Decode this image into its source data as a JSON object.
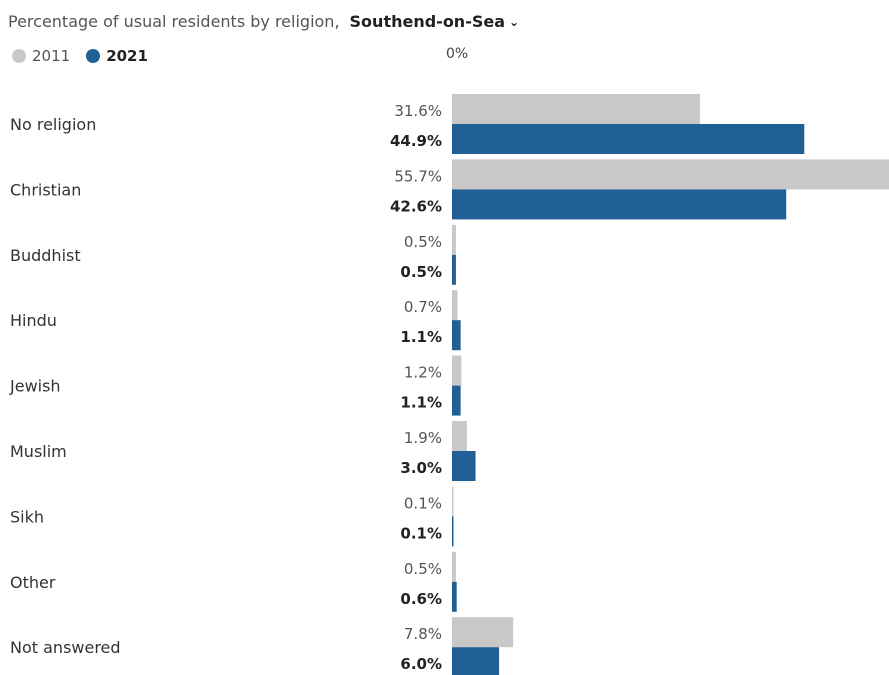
{
  "header": {
    "title": "Percentage of usual residents by religion,",
    "area": "Southend-on-Sea",
    "chevron": "⌄"
  },
  "legend": [
    {
      "name": "2011",
      "color": "#c8c8c8"
    },
    {
      "name": "2021",
      "color": "#206095"
    }
  ],
  "axis": {
    "zero_label": "0%"
  },
  "chart_data": {
    "type": "bar",
    "orientation": "horizontal",
    "categories": [
      "No religion",
      "Christian",
      "Buddhist",
      "Hindu",
      "Jewish",
      "Muslim",
      "Sikh",
      "Other",
      "Not answered"
    ],
    "series": [
      {
        "name": "2011",
        "color": "#c8c8c8",
        "values": [
          31.6,
          55.7,
          0.5,
          0.7,
          1.2,
          1.9,
          0.1,
          0.5,
          7.8
        ]
      },
      {
        "name": "2021",
        "color": "#206095",
        "values": [
          44.9,
          42.6,
          0.5,
          1.1,
          1.1,
          3.0,
          0.1,
          0.6,
          6.0
        ]
      }
    ],
    "value_suffix": "%",
    "xlim": [
      0,
      55.7
    ],
    "grid": false,
    "legend_position": "top-left"
  }
}
